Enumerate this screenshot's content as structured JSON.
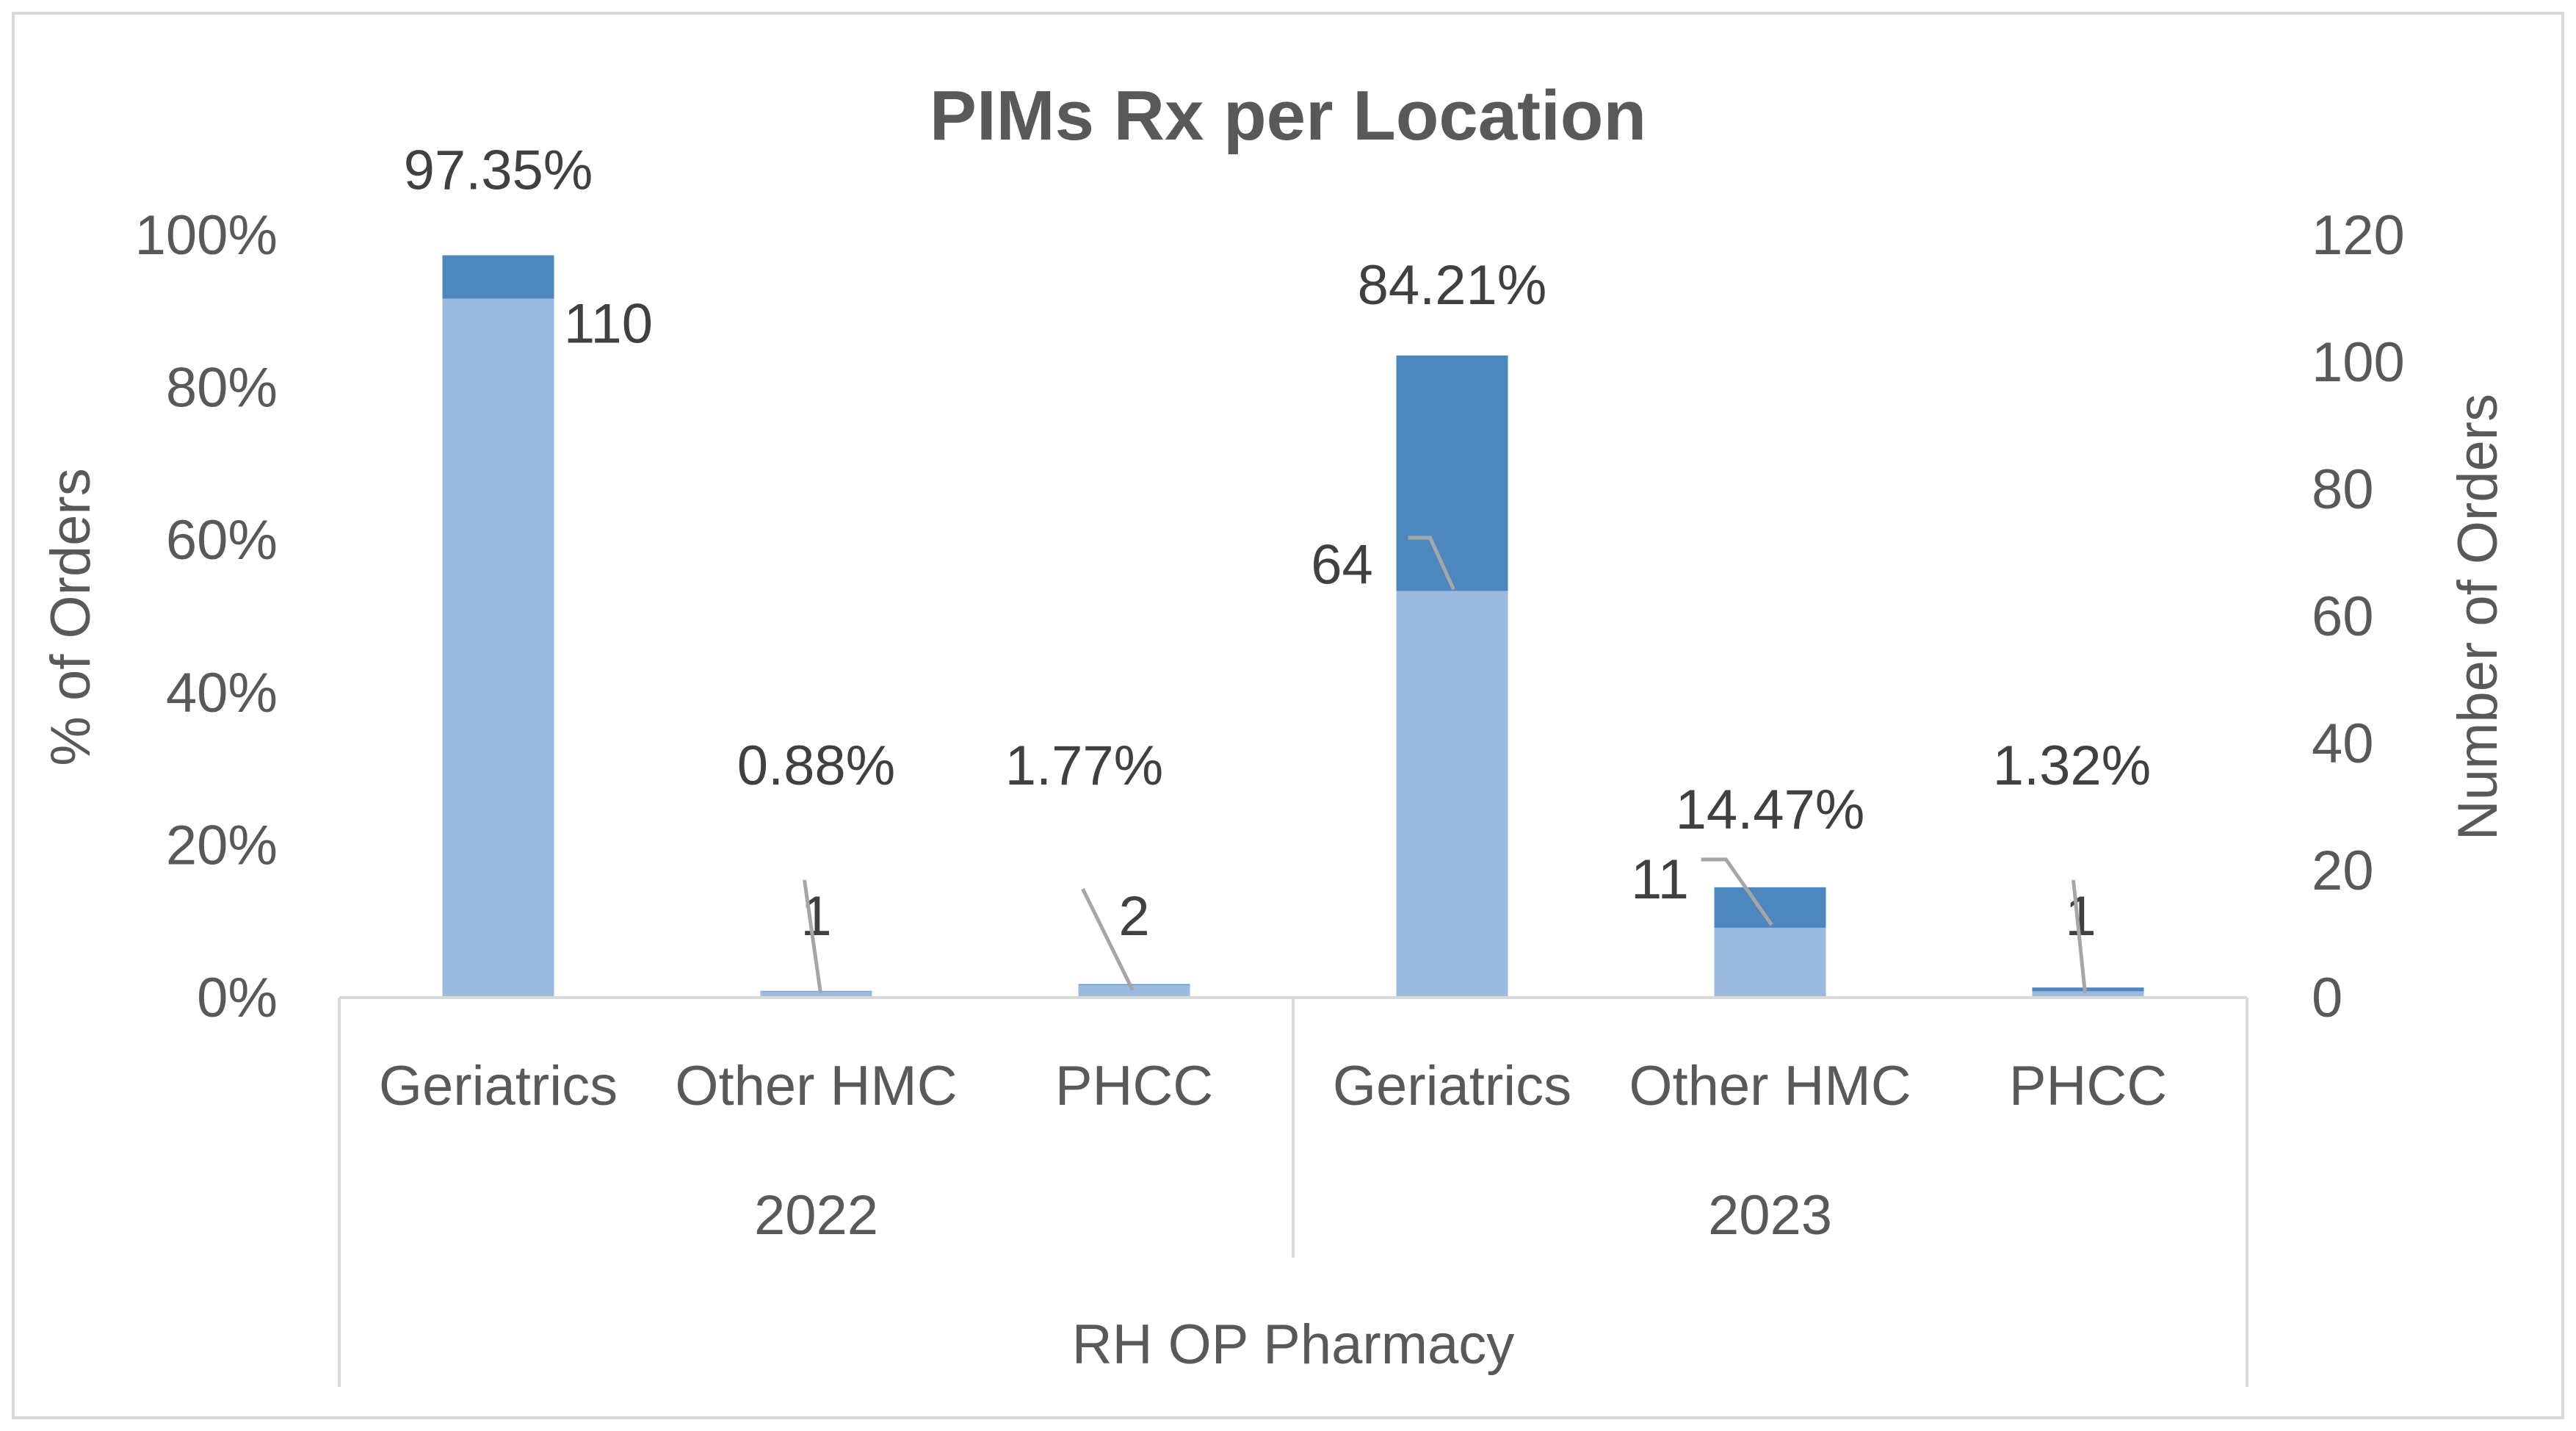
{
  "chart_data": {
    "type": "bar",
    "title": "PIMs Rx per Location",
    "y_left_label": "% of Orders",
    "y_right_label": "Number of Orders",
    "y_left_ticks": [
      "0%",
      "20%",
      "40%",
      "60%",
      "80%",
      "100%"
    ],
    "y_right_ticks": [
      "0",
      "20",
      "40",
      "60",
      "80",
      "100",
      "120"
    ],
    "ylim_left": [
      0,
      100
    ],
    "ylim_right": [
      0,
      120
    ],
    "categories": [
      "Geriatrics",
      "Other HMC",
      "PHCC",
      "Geriatrics",
      "Other HMC",
      "PHCC"
    ],
    "groups": [
      {
        "label": "2022",
        "span": [
          0,
          2
        ]
      },
      {
        "label": "2023",
        "span": [
          3,
          5
        ]
      }
    ],
    "outer_group": "RH OP Pharmacy",
    "series": [
      {
        "axis": "left",
        "values": [
          97.35,
          0.88,
          1.77,
          84.21,
          14.47,
          1.32
        ],
        "labels": [
          "97.35%",
          "0.88%",
          "1.77%",
          "84.21%",
          "14.47%",
          "1.32%"
        ]
      },
      {
        "axis": "right",
        "values": [
          110,
          1,
          2,
          64,
          11,
          1
        ],
        "labels": [
          "110",
          "1",
          "2",
          "64",
          "11",
          "1"
        ]
      }
    ],
    "colors": {
      "pct": "#4e87bd",
      "count": "#9ab9df",
      "text": "#595959",
      "border": "#d9d9d9",
      "leader": "#a6a6a6"
    },
    "grid": false,
    "legend": "none"
  }
}
